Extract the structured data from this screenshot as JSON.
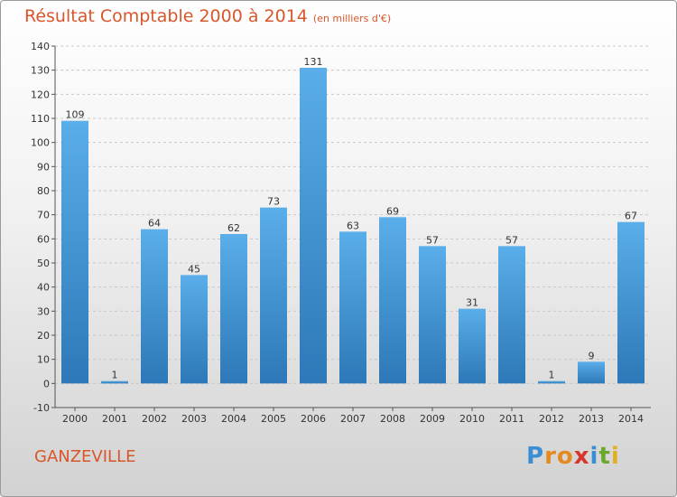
{
  "chart_data": {
    "type": "bar",
    "title": "Résultat Comptable 2000 à 2014",
    "subtitle": "(en milliers d'€)",
    "categories": [
      "2000",
      "2001",
      "2002",
      "2003",
      "2004",
      "2005",
      "2006",
      "2007",
      "2008",
      "2009",
      "2010",
      "2011",
      "2012",
      "2013",
      "2014"
    ],
    "values": [
      109,
      1,
      64,
      45,
      62,
      73,
      131,
      63,
      69,
      57,
      31,
      57,
      1,
      9,
      67
    ],
    "ylim": [
      -10,
      140
    ],
    "yticks": [
      -10,
      0,
      10,
      20,
      30,
      40,
      50,
      60,
      70,
      80,
      90,
      100,
      110,
      120,
      130,
      140
    ],
    "grid": "horizontal dashed",
    "bar_color": "#3a8fd4"
  },
  "footer": {
    "city": "GANZEVILLE",
    "logo": "Proxiti"
  }
}
